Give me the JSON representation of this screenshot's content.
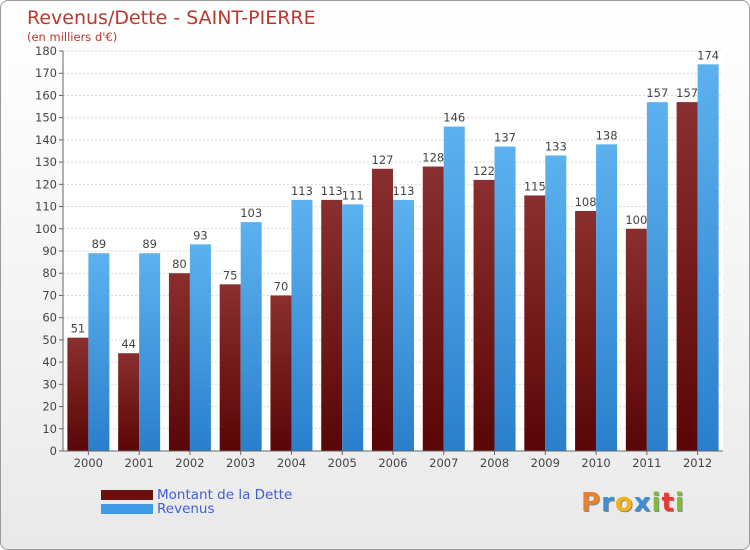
{
  "chart_data": {
    "type": "bar",
    "title": "Revenus/Dette - SAINT-PIERRE",
    "subtitle": "(en milliers d'€)",
    "categories": [
      "2000",
      "2001",
      "2002",
      "2003",
      "2004",
      "2005",
      "2006",
      "2007",
      "2008",
      "2009",
      "2010",
      "2011",
      "2012"
    ],
    "series": [
      {
        "name": "Montant de la Dette",
        "color": "#6e0f0f",
        "values": [
          51,
          44,
          80,
          75,
          70,
          113,
          127,
          128,
          122,
          115,
          108,
          100,
          157
        ]
      },
      {
        "name": "Revenus",
        "color": "#3f9be6",
        "values": [
          89,
          89,
          93,
          103,
          113,
          111,
          113,
          146,
          137,
          133,
          138,
          157,
          174
        ]
      }
    ],
    "ylim": [
      0,
      180
    ],
    "yticks": [
      0,
      10,
      20,
      30,
      40,
      50,
      60,
      70,
      80,
      90,
      100,
      110,
      120,
      130,
      140,
      150,
      160,
      170,
      180
    ],
    "grid": true,
    "legend_position": "bottom-left"
  },
  "logo": {
    "letters": [
      "P",
      "r",
      "o",
      "x",
      "i",
      "t",
      "i"
    ],
    "colors": [
      "#e8822a",
      "#3a8fd6",
      "#f2b21c",
      "#3a8fd6",
      "#7cbf3a",
      "#e83a2f",
      "#7cbf3a"
    ]
  }
}
